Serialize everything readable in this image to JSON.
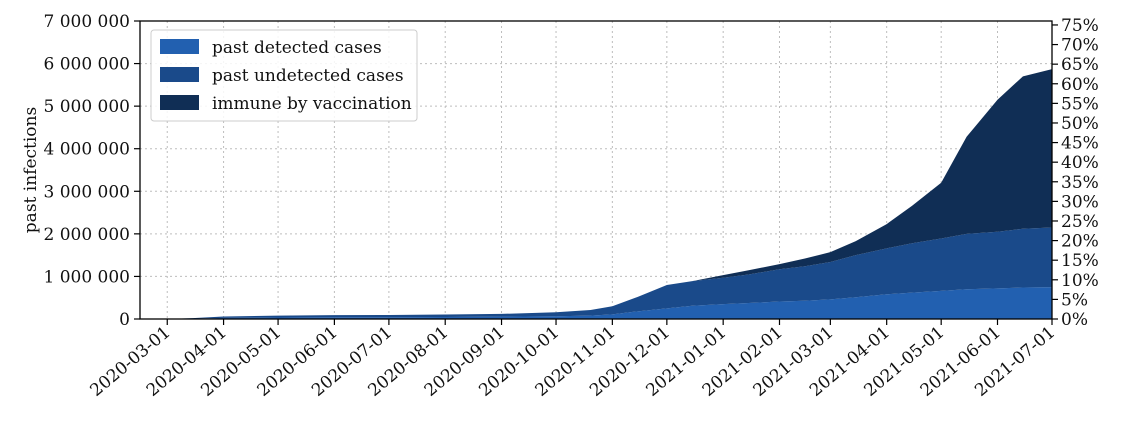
{
  "chart_data": {
    "type": "area",
    "stacked": true,
    "ylabel": "past infections",
    "ylim": [
      0,
      7000000
    ],
    "y_ticks": [
      0,
      1000000,
      2000000,
      3000000,
      4000000,
      5000000,
      6000000,
      7000000
    ],
    "y_tick_labels": [
      "0",
      "1 000 000",
      "2 000 000",
      "3 000 000",
      "4 000 000",
      "5 000 000",
      "6 000 000",
      "7 000 000"
    ],
    "secondary_y_ticks_pct": [
      0,
      5,
      10,
      15,
      20,
      25,
      30,
      35,
      40,
      45,
      50,
      55,
      60,
      65,
      70,
      75
    ],
    "secondary_y_tick_labels": [
      "0%",
      "5%",
      "10%",
      "15%",
      "20%",
      "25%",
      "30%",
      "35%",
      "40%",
      "45%",
      "50%",
      "55%",
      "60%",
      "65%",
      "70%",
      "75%"
    ],
    "xlim": [
      "2020-02-15",
      "2021-07-01"
    ],
    "x_tick_labels": [
      "2020-03-01",
      "2020-04-01",
      "2020-05-01",
      "2020-06-01",
      "2020-07-01",
      "2020-08-01",
      "2020-09-01",
      "2020-10-01",
      "2020-11-01",
      "2020-12-01",
      "2021-01-01",
      "2021-02-01",
      "2021-03-01",
      "2021-04-01",
      "2021-05-01",
      "2021-06-01",
      "2021-07-01"
    ],
    "grid": true,
    "legend_position": "top-left",
    "x": [
      "2020-03-01",
      "2020-03-15",
      "2020-04-01",
      "2020-05-01",
      "2020-06-01",
      "2020-07-01",
      "2020-08-01",
      "2020-09-01",
      "2020-10-01",
      "2020-10-20",
      "2020-11-01",
      "2020-11-15",
      "2020-12-01",
      "2020-12-15",
      "2021-01-01",
      "2021-01-15",
      "2021-02-01",
      "2021-02-15",
      "2021-03-01",
      "2021-03-15",
      "2021-04-01",
      "2021-04-15",
      "2021-05-01",
      "2021-05-15",
      "2021-06-01",
      "2021-06-15",
      "2021-07-01"
    ],
    "series": [
      {
        "name": "past detected cases",
        "color": "#2260b0",
        "values": [
          0,
          10000,
          25000,
          35000,
          40000,
          42000,
          48000,
          55000,
          65000,
          80000,
          110000,
          180000,
          250000,
          310000,
          350000,
          375000,
          410000,
          430000,
          460000,
          510000,
          580000,
          620000,
          660000,
          700000,
          720000,
          740000,
          750000
        ]
      },
      {
        "name": "past undetected cases",
        "color": "#1a4a8a",
        "values": [
          0,
          10000,
          35000,
          45000,
          50000,
          53000,
          57000,
          65000,
          95000,
          130000,
          190000,
          340000,
          550000,
          580000,
          620000,
          670000,
          760000,
          810000,
          880000,
          990000,
          1080000,
          1160000,
          1230000,
          1300000,
          1330000,
          1380000,
          1400000
        ]
      },
      {
        "name": "immune by vaccination",
        "color": "#102e55",
        "values": [
          0,
          0,
          0,
          0,
          0,
          0,
          0,
          0,
          0,
          0,
          0,
          0,
          0,
          0,
          60000,
          100000,
          120000,
          180000,
          230000,
          330000,
          570000,
          880000,
          1310000,
          2280000,
          3100000,
          3580000,
          3720000
        ]
      }
    ]
  }
}
